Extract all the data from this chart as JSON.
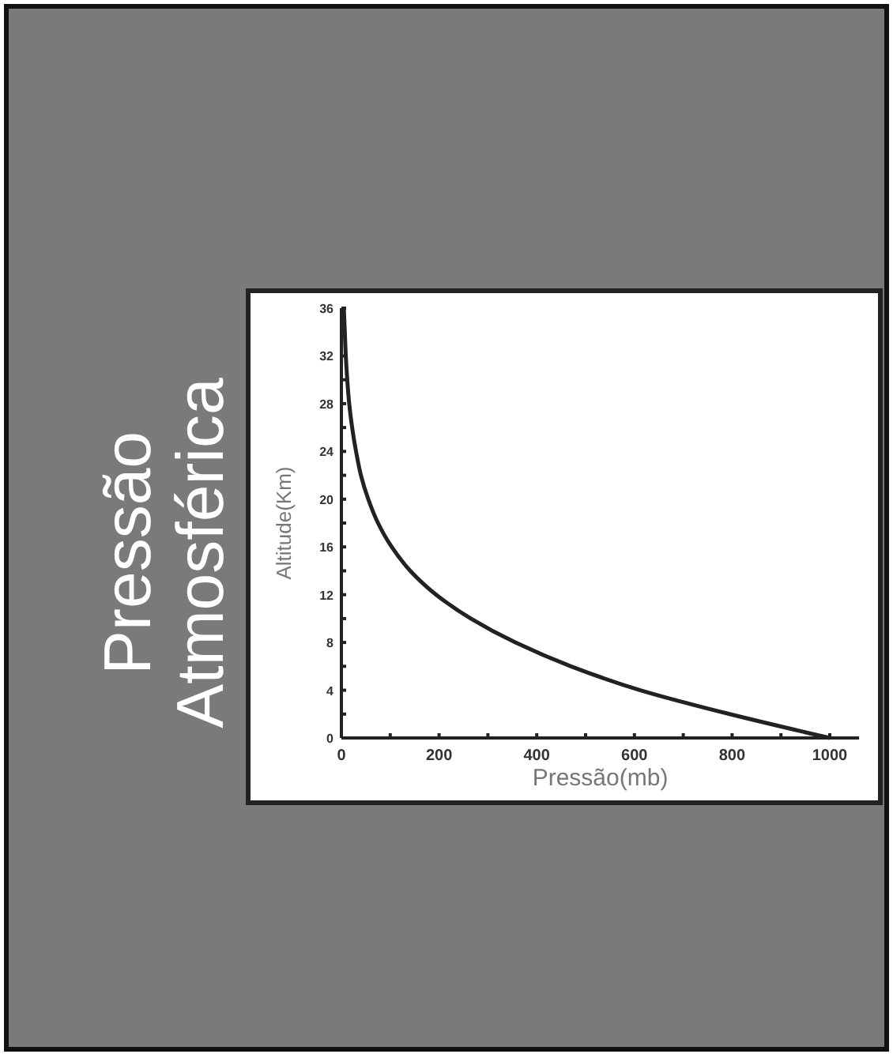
{
  "chart_data": {
    "type": "line",
    "title": "Pressão Atmosférica",
    "xlabel": "Pressão(mb)",
    "ylabel": "Altitude(Km)",
    "x": [
      1000,
      795,
      612,
      470,
      356,
      265,
      194,
      141,
      103,
      75,
      55,
      40,
      30,
      22,
      16,
      12,
      9,
      7,
      5
    ],
    "values": [
      0,
      2,
      4,
      6,
      8,
      10,
      12,
      14,
      16,
      18,
      20,
      22,
      24,
      26,
      28,
      30,
      32,
      34,
      36
    ],
    "color": "#222222",
    "marker": "none",
    "line_style": "solid",
    "grid": false,
    "xlim": [
      0,
      1060
    ],
    "ylim": [
      0,
      36
    ],
    "xticks": [
      0,
      {
        "value": 100,
        "label": null
      },
      200,
      {
        "value": 300,
        "label": null
      },
      400,
      {
        "value": 500,
        "label": null
      },
      600,
      {
        "value": 700,
        "label": null
      },
      800,
      {
        "value": 900,
        "label": null
      },
      1000
    ],
    "yticks": [
      0,
      {
        "value": 2,
        "label": null
      },
      4,
      {
        "value": 6,
        "label": null
      },
      8,
      {
        "value": 10,
        "label": null
      },
      12,
      {
        "value": 14,
        "label": null
      },
      16,
      {
        "value": 18,
        "label": null
      },
      20,
      {
        "value": 22,
        "label": null
      },
      24,
      {
        "value": 26,
        "label": null
      },
      28,
      {
        "value": 30,
        "label": null
      },
      32,
      {
        "value": 34,
        "label": null
      },
      36
    ]
  }
}
